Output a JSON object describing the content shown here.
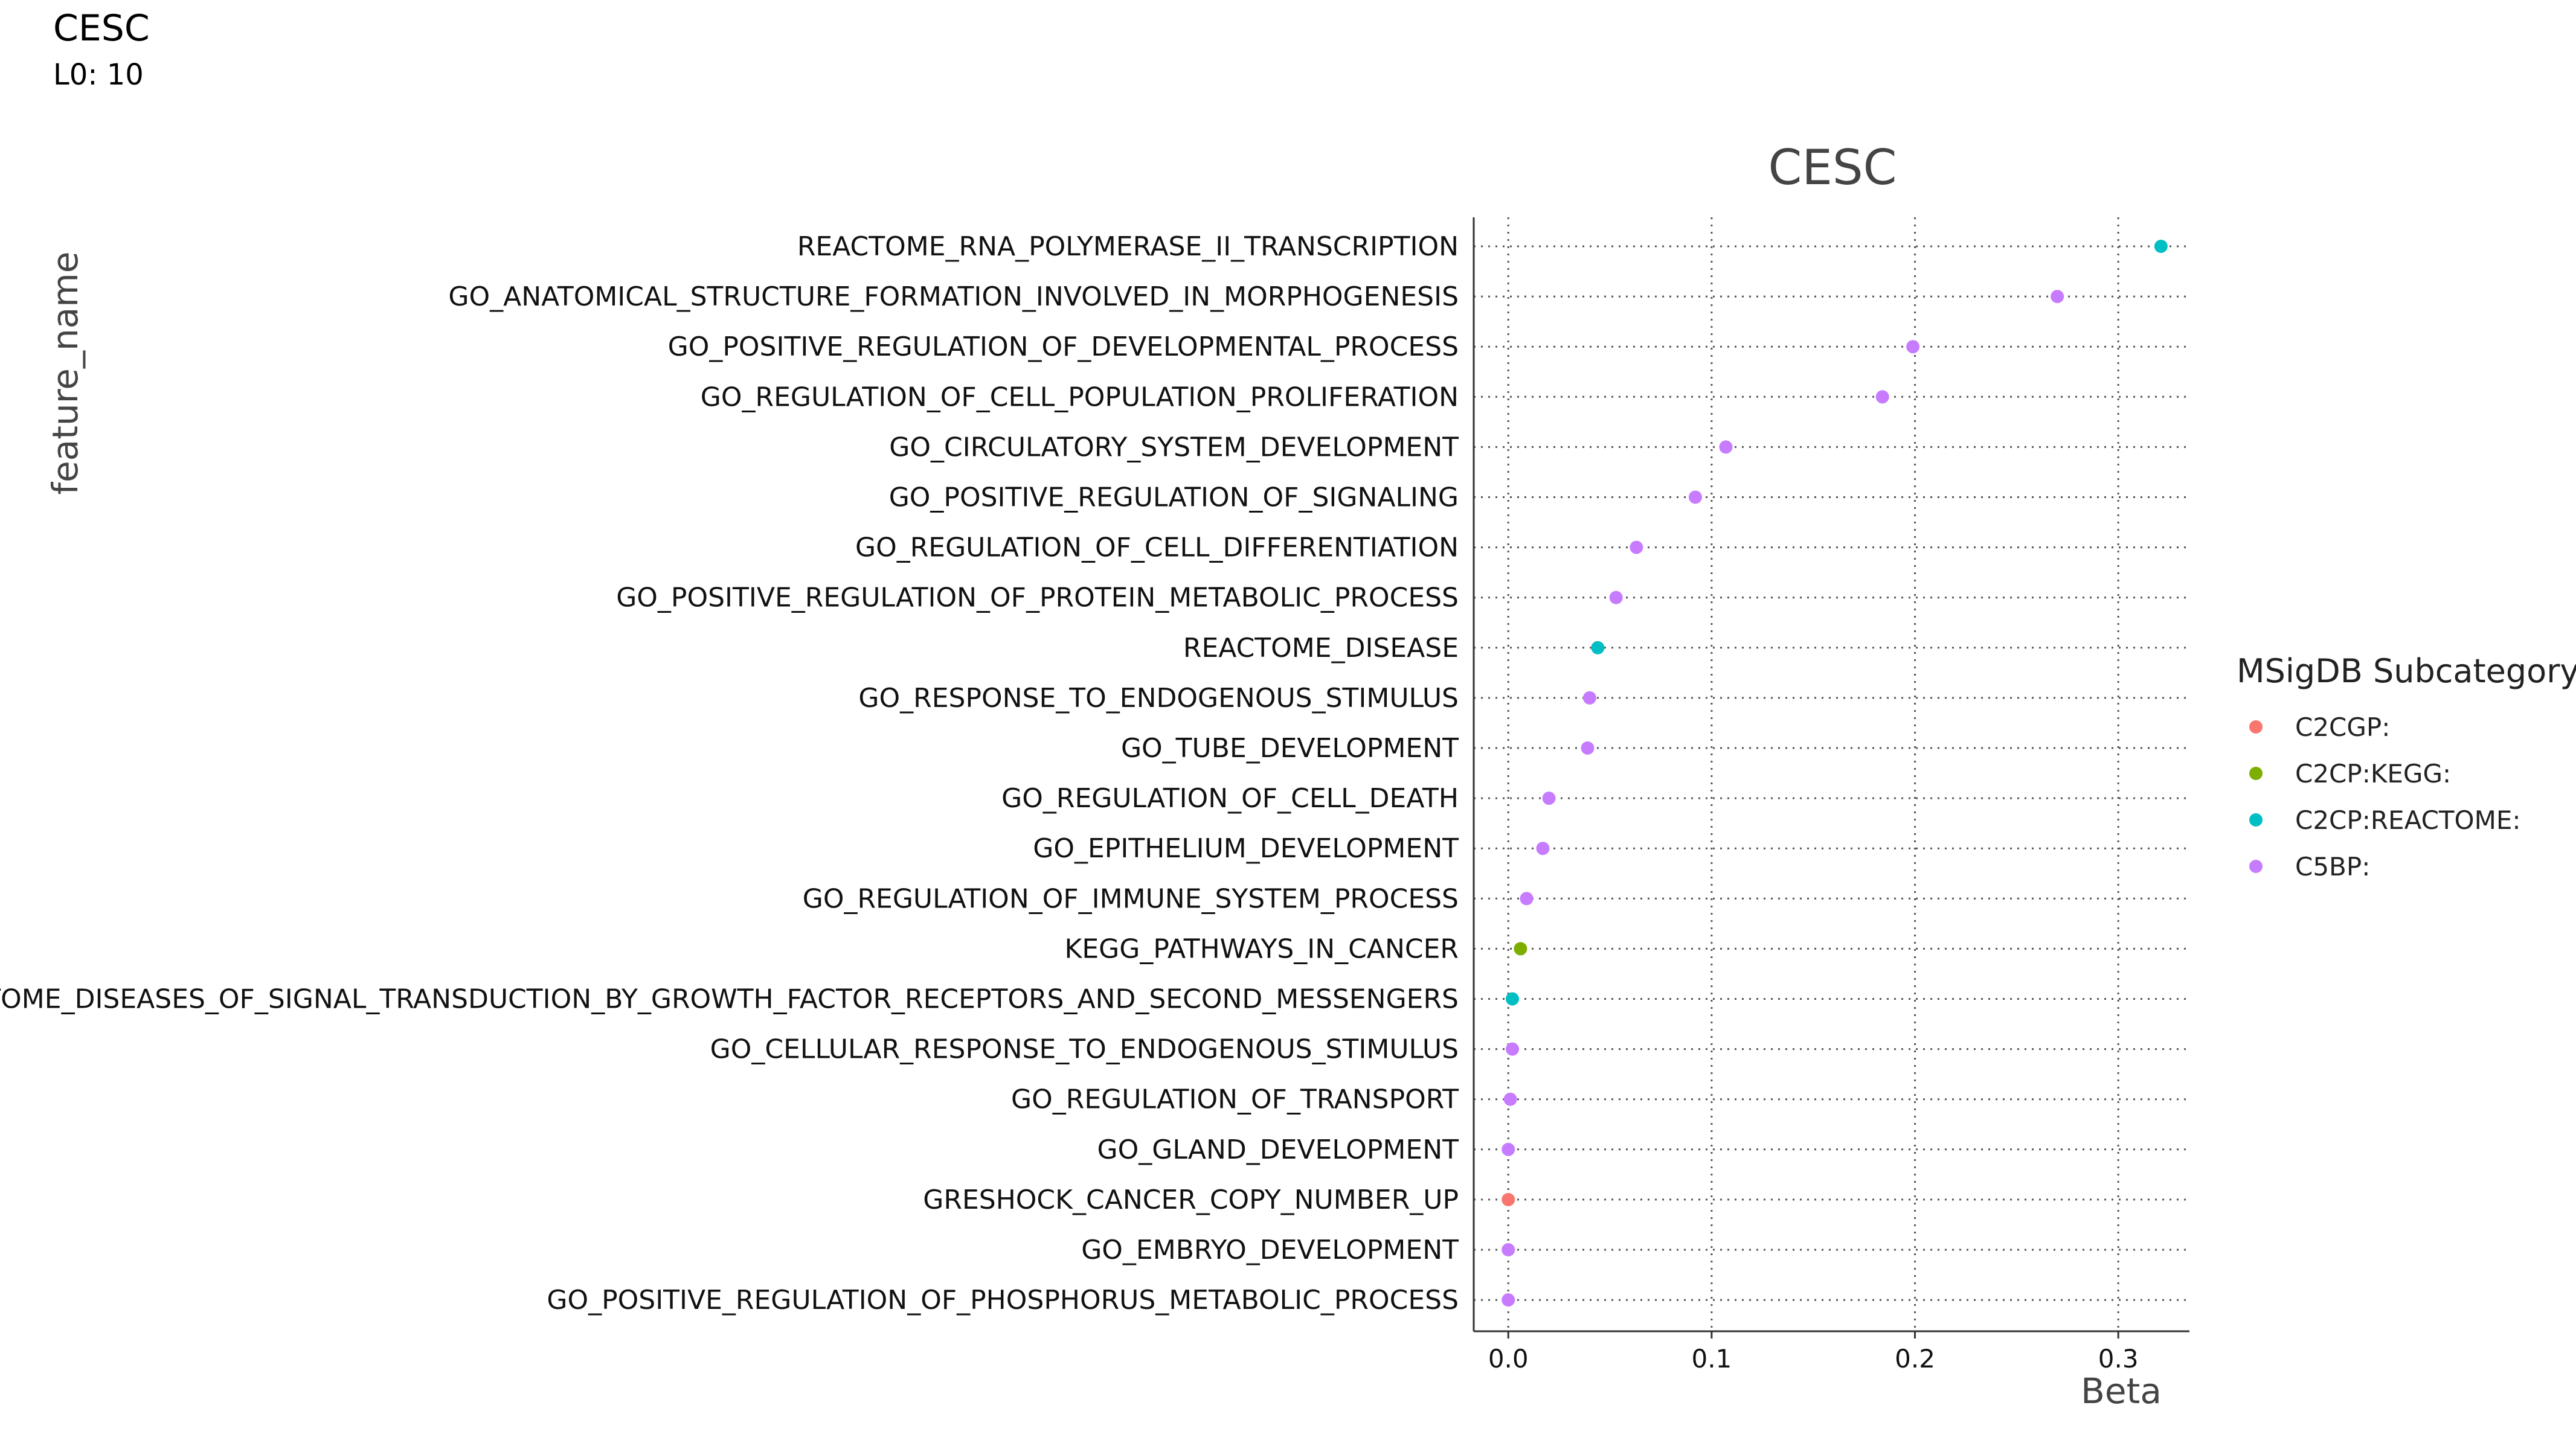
{
  "header": {
    "title": "CESC",
    "subtitle": "L0: 10"
  },
  "colors": {
    "C2CGP:": "#F8766D",
    "C2CP:KEGG:": "#7CAE00",
    "C2CP:REACTOME:": "#00BFC4",
    "C5BP:": "#C77CFF"
  },
  "chart_data": {
    "type": "scatter",
    "title": "CESC",
    "xlabel": "Beta",
    "ylabel": "feature_name",
    "xlim": [
      -0.017,
      0.335
    ],
    "xticks": [
      0.0,
      0.1,
      0.2,
      0.3
    ],
    "xtick_labels": [
      "0.0",
      "0.1",
      "0.2",
      "0.3"
    ],
    "grid": true,
    "legend": {
      "title": "MSigDB Subcategory",
      "position": "right",
      "entries": [
        "C2CGP:",
        "C2CP:KEGG:",
        "C2CP:REACTOME:",
        "C5BP:"
      ]
    },
    "points": [
      {
        "feature": "REACTOME_RNA_POLYMERASE_II_TRANSCRIPTION",
        "beta": 0.321,
        "subcategory": "C2CP:REACTOME:"
      },
      {
        "feature": "GO_ANATOMICAL_STRUCTURE_FORMATION_INVOLVED_IN_MORPHOGENESIS",
        "beta": 0.27,
        "subcategory": "C5BP:"
      },
      {
        "feature": "GO_POSITIVE_REGULATION_OF_DEVELOPMENTAL_PROCESS",
        "beta": 0.199,
        "subcategory": "C5BP:"
      },
      {
        "feature": "GO_REGULATION_OF_CELL_POPULATION_PROLIFERATION",
        "beta": 0.184,
        "subcategory": "C5BP:"
      },
      {
        "feature": "GO_CIRCULATORY_SYSTEM_DEVELOPMENT",
        "beta": 0.107,
        "subcategory": "C5BP:"
      },
      {
        "feature": "GO_POSITIVE_REGULATION_OF_SIGNALING",
        "beta": 0.092,
        "subcategory": "C5BP:"
      },
      {
        "feature": "GO_REGULATION_OF_CELL_DIFFERENTIATION",
        "beta": 0.063,
        "subcategory": "C5BP:"
      },
      {
        "feature": "GO_POSITIVE_REGULATION_OF_PROTEIN_METABOLIC_PROCESS",
        "beta": 0.053,
        "subcategory": "C5BP:"
      },
      {
        "feature": "REACTOME_DISEASE",
        "beta": 0.044,
        "subcategory": "C2CP:REACTOME:"
      },
      {
        "feature": "GO_RESPONSE_TO_ENDOGENOUS_STIMULUS",
        "beta": 0.04,
        "subcategory": "C5BP:"
      },
      {
        "feature": "GO_TUBE_DEVELOPMENT",
        "beta": 0.039,
        "subcategory": "C5BP:"
      },
      {
        "feature": "GO_REGULATION_OF_CELL_DEATH",
        "beta": 0.02,
        "subcategory": "C5BP:"
      },
      {
        "feature": "GO_EPITHELIUM_DEVELOPMENT",
        "beta": 0.017,
        "subcategory": "C5BP:"
      },
      {
        "feature": "GO_REGULATION_OF_IMMUNE_SYSTEM_PROCESS",
        "beta": 0.009,
        "subcategory": "C5BP:"
      },
      {
        "feature": "KEGG_PATHWAYS_IN_CANCER",
        "beta": 0.006,
        "subcategory": "C2CP:KEGG:"
      },
      {
        "feature": "REACTOME_DISEASES_OF_SIGNAL_TRANSDUCTION_BY_GROWTH_FACTOR_RECEPTORS_AND_SECOND_MESSENGERS",
        "beta": 0.002,
        "subcategory": "C2CP:REACTOME:"
      },
      {
        "feature": "GO_CELLULAR_RESPONSE_TO_ENDOGENOUS_STIMULUS",
        "beta": 0.002,
        "subcategory": "C5BP:"
      },
      {
        "feature": "GO_REGULATION_OF_TRANSPORT",
        "beta": 0.001,
        "subcategory": "C5BP:"
      },
      {
        "feature": "GO_GLAND_DEVELOPMENT",
        "beta": 0.0,
        "subcategory": "C5BP:"
      },
      {
        "feature": "GRESHOCK_CANCER_COPY_NUMBER_UP",
        "beta": 0.0,
        "subcategory": "C2CGP:"
      },
      {
        "feature": "GO_EMBRYO_DEVELOPMENT",
        "beta": 0.0,
        "subcategory": "C5BP:"
      },
      {
        "feature": "GO_POSITIVE_REGULATION_OF_PHOSPHORUS_METABOLIC_PROCESS",
        "beta": 0.0,
        "subcategory": "C5BP:"
      }
    ]
  }
}
